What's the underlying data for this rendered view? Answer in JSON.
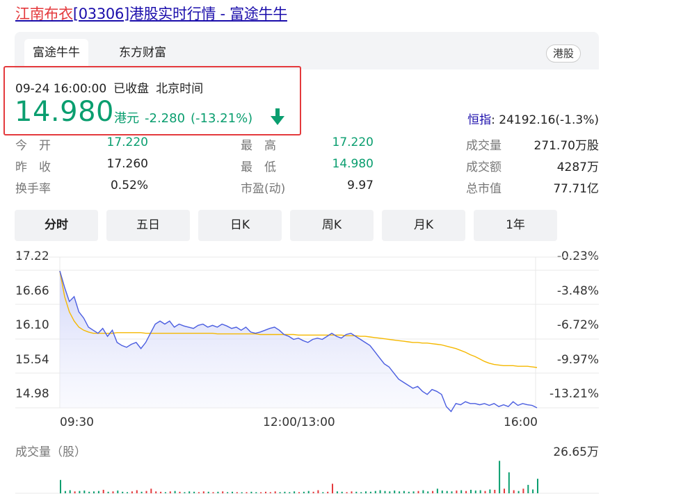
{
  "title": {
    "highlight": "江南布衣",
    "rest": "[03306]港股实时行情 - 富途牛牛"
  },
  "tabs": [
    "富途牛牛",
    "东方财富"
  ],
  "market_badge": "港股",
  "quote": {
    "time": "09-24 16:00:00",
    "status": "已收盘",
    "timezone": "北京时间",
    "price": "14.980",
    "currency": "港元",
    "change": "-2.280",
    "change_pct": "(-13.21%)",
    "index_label": "恒指",
    "index_value": ": 24192.16(-1.3%)"
  },
  "stats": [
    {
      "label": "今　开",
      "value": "17.220"
    },
    {
      "label": "昨　收",
      "value": "17.260"
    },
    {
      "label": "换手率",
      "value": "0.52%"
    },
    {
      "label": "最　高",
      "value": "17.220"
    },
    {
      "label": "最　低",
      "value": "14.980"
    },
    {
      "label": "市盈(动)",
      "value": "9.97"
    },
    {
      "label": "成交量",
      "value": "271.70万股"
    },
    {
      "label": "成交额",
      "value": "4287万"
    },
    {
      "label": "总市值",
      "value": "77.71亿"
    }
  ],
  "period_buttons": [
    "分时",
    "五日",
    "日K",
    "周K",
    "月K",
    "1年"
  ],
  "colors": {
    "up": "#e4393c",
    "down": "#0a9e6f",
    "price_line": "#4a5de0",
    "avg_line": "#f5b800"
  },
  "chart_data": {
    "type": "line",
    "y_left_ticks": [
      "17.22",
      "16.66",
      "16.10",
      "15.54",
      "14.98"
    ],
    "y_right_ticks": [
      "-0.23%",
      "-3.48%",
      "-6.72%",
      "-9.97%",
      "-13.21%"
    ],
    "x_ticks": [
      "09:30",
      "12:00/13:00",
      "16:00"
    ],
    "ylim": [
      14.98,
      17.22
    ],
    "volume_label": "成交量（股）",
    "volume_max": "26.65万",
    "series": [
      {
        "values": [
          17.22,
          16.95,
          16.72,
          16.8,
          16.55,
          16.45,
          16.3,
          16.25,
          16.2,
          16.28,
          16.15,
          16.25,
          16.05,
          16.0,
          15.97,
          16.02,
          16.05,
          15.95,
          16.05,
          16.2,
          16.35,
          16.4,
          16.35,
          16.4,
          16.3,
          16.35,
          16.32,
          16.3,
          16.28,
          16.33,
          16.35,
          16.3,
          16.33,
          16.3,
          16.35,
          16.32,
          16.28,
          16.3,
          16.25,
          16.3,
          16.22,
          16.2,
          16.22,
          16.25,
          16.28,
          16.3,
          16.25,
          16.18,
          16.15,
          16.1,
          16.12,
          16.08,
          16.05,
          16.1,
          16.12,
          16.1,
          16.15,
          16.2,
          16.15,
          16.12,
          16.18,
          16.2,
          16.15,
          16.1,
          16.05,
          16.0,
          15.9,
          15.8,
          15.7,
          15.65,
          15.55,
          15.45,
          15.4,
          15.35,
          15.3,
          15.33,
          15.25,
          15.2,
          15.28,
          15.25,
          15.2,
          15.0,
          14.92,
          15.05,
          15.03,
          15.08,
          15.05,
          15.05,
          15.03,
          15.05,
          15.02,
          15.05,
          15.0,
          15.03,
          15.0,
          15.08,
          15.02,
          15.05,
          15.03,
          15.02,
          14.98
        ]
      },
      {
        "values": [
          17.22,
          16.8,
          16.55,
          16.4,
          16.3,
          16.25,
          16.22,
          16.2,
          16.2,
          16.2,
          16.2,
          16.2,
          16.21,
          16.21,
          16.21,
          16.21,
          16.21,
          16.21,
          16.2,
          16.2,
          16.2,
          16.2,
          16.2,
          16.2,
          16.2,
          16.2,
          16.2,
          16.2,
          16.2,
          16.2,
          16.2,
          16.2,
          16.2,
          16.19,
          16.19,
          16.19,
          16.19,
          16.19,
          16.19,
          16.19,
          16.19,
          16.19,
          16.18,
          16.18,
          16.18,
          16.18,
          16.18,
          16.18,
          16.18,
          16.18,
          16.17,
          16.17,
          16.17,
          16.17,
          16.17,
          16.17,
          16.17,
          16.17,
          16.17,
          16.17,
          16.16,
          16.16,
          16.16,
          16.15,
          16.15,
          16.14,
          16.13,
          16.12,
          16.11,
          16.1,
          16.09,
          16.08,
          16.07,
          16.06,
          16.05,
          16.05,
          16.04,
          16.04,
          16.03,
          16.02,
          16.01,
          15.99,
          15.97,
          15.95,
          15.92,
          15.89,
          15.85,
          15.82,
          15.78,
          15.74,
          15.71,
          15.69,
          15.68,
          15.67,
          15.67,
          15.67,
          15.66,
          15.66,
          15.66,
          15.65,
          15.64
        ]
      }
    ],
    "volume": [
      0.35,
      0.06,
      0.08,
      0.05,
      0.06,
      0.07,
      0.04,
      0.05,
      0.06,
      0.09,
      0.04,
      0.05,
      0.07,
      0.04,
      0.03,
      0.05,
      0.08,
      0.04,
      0.06,
      0.12,
      0.05,
      0.04,
      0.03,
      0.05,
      0.06,
      0.04,
      0.03,
      0.05,
      0.04,
      0.03,
      0.05,
      0.04,
      0.03,
      0.04,
      0.05,
      0.03,
      0.04,
      0.03,
      0.02,
      0.03,
      0.04,
      0.03,
      0.02,
      0.04,
      0.03,
      0.05,
      0.03,
      0.04,
      0.03,
      0.05,
      0.03,
      0.04,
      0.06,
      0.04,
      0.08,
      0.03,
      0.04,
      0.25,
      0.05,
      0.04,
      0.03,
      0.05,
      0.04,
      0.03,
      0.05,
      0.04,
      0.06,
      0.08,
      0.06,
      0.05,
      0.07,
      0.05,
      0.06,
      0.04,
      0.05,
      0.06,
      0.08,
      0.05,
      0.06,
      0.12,
      0.07,
      0.06,
      0.05,
      0.07,
      0.08,
      0.06,
      0.09,
      0.07,
      0.08,
      0.06,
      0.1,
      0.09,
      0.85,
      0.12,
      0.55,
      0.08,
      0.06,
      0.12,
      0.22,
      0.1,
      0.38
    ]
  }
}
